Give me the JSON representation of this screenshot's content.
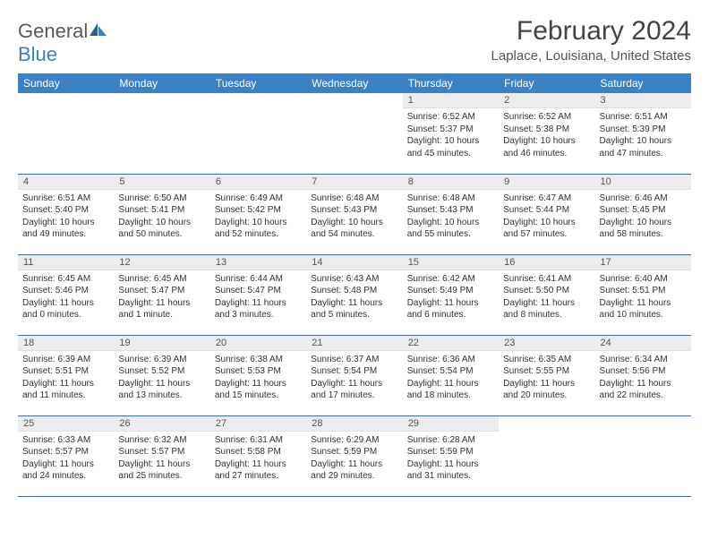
{
  "logo": {
    "word1": "General",
    "word2": "Blue"
  },
  "title": "February 2024",
  "location": "Laplace, Louisiana, United States",
  "colors": {
    "header_bg": "#3b82c4",
    "daynum_bg": "#ececec",
    "row_border": "#3b6ea0",
    "logo_blue": "#3b82c4"
  },
  "weekdays": [
    "Sunday",
    "Monday",
    "Tuesday",
    "Wednesday",
    "Thursday",
    "Friday",
    "Saturday"
  ],
  "weeks": [
    [
      null,
      null,
      null,
      null,
      {
        "n": "1",
        "sr": "6:52 AM",
        "ss": "5:37 PM",
        "dl": "10 hours and 45 minutes."
      },
      {
        "n": "2",
        "sr": "6:52 AM",
        "ss": "5:38 PM",
        "dl": "10 hours and 46 minutes."
      },
      {
        "n": "3",
        "sr": "6:51 AM",
        "ss": "5:39 PM",
        "dl": "10 hours and 47 minutes."
      }
    ],
    [
      {
        "n": "4",
        "sr": "6:51 AM",
        "ss": "5:40 PM",
        "dl": "10 hours and 49 minutes."
      },
      {
        "n": "5",
        "sr": "6:50 AM",
        "ss": "5:41 PM",
        "dl": "10 hours and 50 minutes."
      },
      {
        "n": "6",
        "sr": "6:49 AM",
        "ss": "5:42 PM",
        "dl": "10 hours and 52 minutes."
      },
      {
        "n": "7",
        "sr": "6:48 AM",
        "ss": "5:43 PM",
        "dl": "10 hours and 54 minutes."
      },
      {
        "n": "8",
        "sr": "6:48 AM",
        "ss": "5:43 PM",
        "dl": "10 hours and 55 minutes."
      },
      {
        "n": "9",
        "sr": "6:47 AM",
        "ss": "5:44 PM",
        "dl": "10 hours and 57 minutes."
      },
      {
        "n": "10",
        "sr": "6:46 AM",
        "ss": "5:45 PM",
        "dl": "10 hours and 58 minutes."
      }
    ],
    [
      {
        "n": "11",
        "sr": "6:45 AM",
        "ss": "5:46 PM",
        "dl": "11 hours and 0 minutes."
      },
      {
        "n": "12",
        "sr": "6:45 AM",
        "ss": "5:47 PM",
        "dl": "11 hours and 1 minute."
      },
      {
        "n": "13",
        "sr": "6:44 AM",
        "ss": "5:47 PM",
        "dl": "11 hours and 3 minutes."
      },
      {
        "n": "14",
        "sr": "6:43 AM",
        "ss": "5:48 PM",
        "dl": "11 hours and 5 minutes."
      },
      {
        "n": "15",
        "sr": "6:42 AM",
        "ss": "5:49 PM",
        "dl": "11 hours and 6 minutes."
      },
      {
        "n": "16",
        "sr": "6:41 AM",
        "ss": "5:50 PM",
        "dl": "11 hours and 8 minutes."
      },
      {
        "n": "17",
        "sr": "6:40 AM",
        "ss": "5:51 PM",
        "dl": "11 hours and 10 minutes."
      }
    ],
    [
      {
        "n": "18",
        "sr": "6:39 AM",
        "ss": "5:51 PM",
        "dl": "11 hours and 11 minutes."
      },
      {
        "n": "19",
        "sr": "6:39 AM",
        "ss": "5:52 PM",
        "dl": "11 hours and 13 minutes."
      },
      {
        "n": "20",
        "sr": "6:38 AM",
        "ss": "5:53 PM",
        "dl": "11 hours and 15 minutes."
      },
      {
        "n": "21",
        "sr": "6:37 AM",
        "ss": "5:54 PM",
        "dl": "11 hours and 17 minutes."
      },
      {
        "n": "22",
        "sr": "6:36 AM",
        "ss": "5:54 PM",
        "dl": "11 hours and 18 minutes."
      },
      {
        "n": "23",
        "sr": "6:35 AM",
        "ss": "5:55 PM",
        "dl": "11 hours and 20 minutes."
      },
      {
        "n": "24",
        "sr": "6:34 AM",
        "ss": "5:56 PM",
        "dl": "11 hours and 22 minutes."
      }
    ],
    [
      {
        "n": "25",
        "sr": "6:33 AM",
        "ss": "5:57 PM",
        "dl": "11 hours and 24 minutes."
      },
      {
        "n": "26",
        "sr": "6:32 AM",
        "ss": "5:57 PM",
        "dl": "11 hours and 25 minutes."
      },
      {
        "n": "27",
        "sr": "6:31 AM",
        "ss": "5:58 PM",
        "dl": "11 hours and 27 minutes."
      },
      {
        "n": "28",
        "sr": "6:29 AM",
        "ss": "5:59 PM",
        "dl": "11 hours and 29 minutes."
      },
      {
        "n": "29",
        "sr": "6:28 AM",
        "ss": "5:59 PM",
        "dl": "11 hours and 31 minutes."
      },
      null,
      null
    ]
  ],
  "labels": {
    "sunrise": "Sunrise: ",
    "sunset": "Sunset: ",
    "daylight": "Daylight: "
  }
}
